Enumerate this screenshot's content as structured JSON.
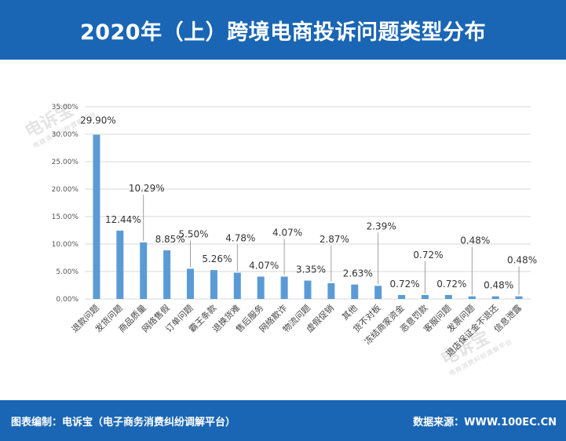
{
  "title": "2020年（上）跨境电商投诉问题类型分布",
  "footer": {
    "left": "图表编制：电诉宝（电子商务消费纠纷调解平台）",
    "right": "数据来源：WWW.100EC.CN"
  },
  "watermark": {
    "text": "电诉宝",
    "sub": "电商消费纠纷调解平台"
  },
  "colors": {
    "header": "#1a66b5",
    "bar": "#5b9bd5",
    "grid": "#d9d9d9"
  },
  "chart_data": {
    "type": "bar",
    "title": "2020年（上）跨境电商投诉问题类型分布",
    "xlabel": "",
    "ylabel": "",
    "ylim": [
      0,
      35
    ],
    "yticks": [
      "0.00%",
      "5.00%",
      "10.00%",
      "15.00%",
      "20.00%",
      "25.00%",
      "30.00%",
      "35.00%"
    ],
    "grid": true,
    "categories": [
      "退款问题",
      "发货问题",
      "商品质量",
      "网络售假",
      "订单问题",
      "霸王条款",
      "退换货难",
      "售后服务",
      "网络欺诈",
      "物流问题",
      "虚假促销",
      "其他",
      "货不对板",
      "冻结商家资金",
      "恶意罚款",
      "客服问题",
      "发票问题",
      "退店保证金不退还",
      "信息泄露"
    ],
    "values": [
      29.9,
      12.44,
      10.29,
      8.85,
      5.5,
      5.26,
      4.78,
      4.07,
      4.07,
      3.35,
      2.87,
      2.63,
      2.39,
      0.72,
      0.72,
      0.72,
      0.48,
      0.48,
      0.48
    ],
    "labels": [
      "29.90%",
      "12.44%",
      "10.29%",
      "8.85%",
      "5.50%",
      "5.26%",
      "4.78%",
      "4.07%",
      "4.07%",
      "3.35%",
      "2.87%",
      "2.63%",
      "2.39%",
      "0.72%",
      "0.72%",
      "0.72%",
      "0.48%",
      "0.48%",
      "0.48%"
    ]
  }
}
